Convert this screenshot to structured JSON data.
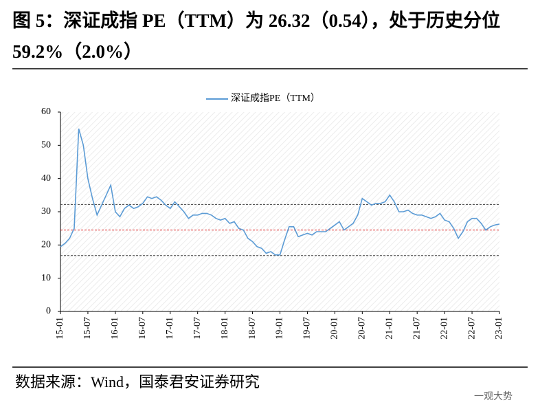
{
  "chart_data": {
    "type": "line",
    "title": "图 5：深证成指 PE（TTM）为 26.32（0.54），处于历史分位 59.2%（2.0%）",
    "source": "数据来源：Wind，国泰君安证券研究",
    "watermark": "一观大势",
    "categories": [
      "15-01",
      null,
      null,
      null,
      null,
      null,
      "15-07",
      null,
      null,
      null,
      null,
      null,
      "16-01",
      null,
      null,
      null,
      null,
      null,
      "16-07",
      null,
      null,
      null,
      null,
      null,
      "17-01",
      null,
      null,
      null,
      null,
      null,
      "17-07",
      null,
      null,
      null,
      null,
      null,
      "18-01",
      null,
      null,
      null,
      null,
      null,
      "18-07",
      null,
      null,
      null,
      null,
      null,
      "19-01",
      null,
      null,
      null,
      null,
      null,
      "19-07",
      null,
      null,
      null,
      null,
      null,
      "20-01",
      null,
      null,
      null,
      null,
      null,
      "20-07",
      null,
      null,
      null,
      null,
      null,
      "21-01",
      null,
      null,
      null,
      null,
      null,
      "21-07",
      null,
      null,
      null,
      null,
      null,
      "22-01",
      null,
      null,
      null,
      null,
      null,
      "22-07",
      null,
      null,
      null,
      null,
      null,
      "23-01"
    ],
    "series": [
      {
        "name": "深证成指PE（TTM）",
        "color": "#5b9bd5",
        "values": [
          19.5,
          20.5,
          22,
          25,
          55,
          50,
          40,
          34,
          29,
          32,
          35,
          38,
          30,
          28.5,
          31,
          32,
          31,
          31.5,
          32.5,
          34.5,
          34,
          34.5,
          33.5,
          32,
          31,
          33,
          31.5,
          30,
          28,
          29,
          29,
          29.5,
          29.5,
          29,
          28,
          27.5,
          28,
          26.5,
          27,
          25,
          24.5,
          22,
          21,
          19.5,
          19,
          17.5,
          18,
          17,
          17,
          21.5,
          25.5,
          25.5,
          22.5,
          23,
          23.5,
          23,
          24,
          24,
          24,
          25,
          26,
          27,
          24.5,
          25.5,
          26.5,
          29,
          34,
          33,
          32,
          32.5,
          32.5,
          33,
          35,
          33,
          30,
          30,
          30.5,
          29.5,
          29,
          29,
          28.5,
          28,
          28.5,
          29.5,
          27.5,
          27,
          25,
          22,
          24,
          27,
          28,
          28,
          26.5,
          24.5,
          25.5,
          26,
          26.3
        ]
      }
    ],
    "hlines": [
      {
        "value": 32.2,
        "color": "#404040"
      },
      {
        "value": 24.5,
        "color": "#e02020"
      },
      {
        "value": 16.8,
        "color": "#404040"
      }
    ],
    "ylim": [
      0,
      60
    ],
    "yticks": [
      0,
      10,
      20,
      30,
      40,
      50,
      60
    ],
    "legend": "top"
  }
}
